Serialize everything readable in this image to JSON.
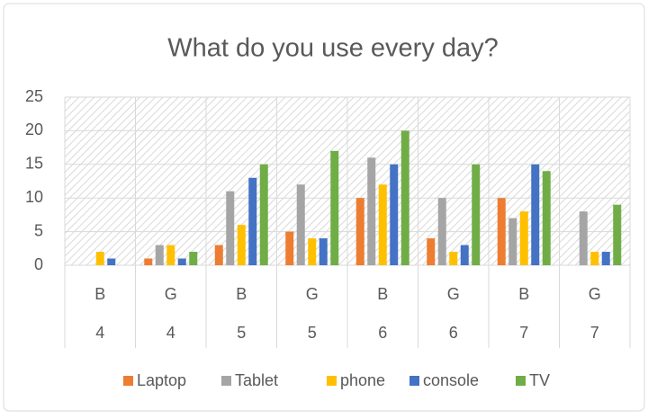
{
  "chart_data": {
    "type": "bar",
    "title": "What do you use every day?",
    "categories": [
      "B",
      "G",
      "B",
      "G",
      "B",
      "G",
      "B",
      "G"
    ],
    "groups": [
      "4",
      "4",
      "5",
      "5",
      "6",
      "6",
      "7",
      "7"
    ],
    "series": [
      {
        "name": "Laptop",
        "color": "#ed7d31",
        "values": [
          0,
          1,
          3,
          5,
          10,
          4,
          10,
          0
        ]
      },
      {
        "name": "Tablet",
        "color": "#a5a5a5",
        "values": [
          0,
          3,
          11,
          12,
          16,
          10,
          7,
          8
        ]
      },
      {
        "name": "phone",
        "color": "#ffc000",
        "values": [
          2,
          3,
          6,
          4,
          12,
          2,
          8,
          2
        ]
      },
      {
        "name": "console",
        "color": "#4472c4",
        "values": [
          1,
          1,
          13,
          4,
          15,
          3,
          15,
          2
        ]
      },
      {
        "name": "TV",
        "color": "#70ad47",
        "values": [
          0,
          2,
          15,
          17,
          20,
          15,
          14,
          9
        ]
      }
    ],
    "ylim": [
      0,
      25
    ],
    "yticks": [
      0,
      5,
      10,
      15,
      20,
      25
    ],
    "grid": true,
    "legend": "bottom"
  }
}
